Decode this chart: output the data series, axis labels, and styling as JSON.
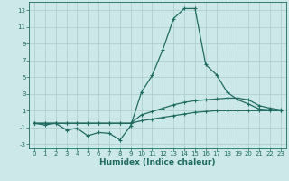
{
  "xlabel": "Humidex (Indice chaleur)",
  "x": [
    0,
    1,
    2,
    3,
    4,
    5,
    6,
    7,
    8,
    9,
    10,
    11,
    12,
    13,
    14,
    15,
    16,
    17,
    18,
    19,
    20,
    21,
    22,
    23
  ],
  "line_main": [
    -0.5,
    -0.7,
    -0.5,
    -1.3,
    -1.1,
    -2.0,
    -1.6,
    -1.7,
    -2.5,
    -0.8,
    3.2,
    5.2,
    8.3,
    12.0,
    13.2,
    13.2,
    6.5,
    5.3,
    3.2,
    2.3,
    1.8,
    1.2,
    1.1,
    1.0
  ],
  "line_upper": [
    -0.5,
    -0.5,
    -0.5,
    -0.5,
    -0.5,
    -0.5,
    -0.5,
    -0.5,
    -0.5,
    -0.5,
    0.5,
    0.9,
    1.3,
    1.7,
    2.0,
    2.2,
    2.3,
    2.4,
    2.5,
    2.5,
    2.3,
    1.6,
    1.3,
    1.1
  ],
  "line_lower": [
    -0.5,
    -0.5,
    -0.5,
    -0.5,
    -0.5,
    -0.5,
    -0.5,
    -0.5,
    -0.5,
    -0.5,
    -0.2,
    0.0,
    0.2,
    0.4,
    0.6,
    0.8,
    0.9,
    1.0,
    1.0,
    1.0,
    1.0,
    1.0,
    1.0,
    1.0
  ],
  "bg_color": "#cce8e8",
  "line_color": "#1e6b60",
  "grid_color": "#aacccc",
  "ylim": [
    -3.5,
    14.0
  ],
  "xlim": [
    -0.5,
    23.5
  ],
  "yticks": [
    -3,
    -1,
    1,
    3,
    5,
    7,
    9,
    11,
    13
  ],
  "xticks": [
    0,
    1,
    2,
    3,
    4,
    5,
    6,
    7,
    8,
    9,
    10,
    11,
    12,
    13,
    14,
    15,
    16,
    17,
    18,
    19,
    20,
    21,
    22,
    23
  ],
  "xlabel_fontsize": 6.5,
  "tick_fontsize": 5.0,
  "linewidth": 0.9,
  "markersize": 2.5
}
